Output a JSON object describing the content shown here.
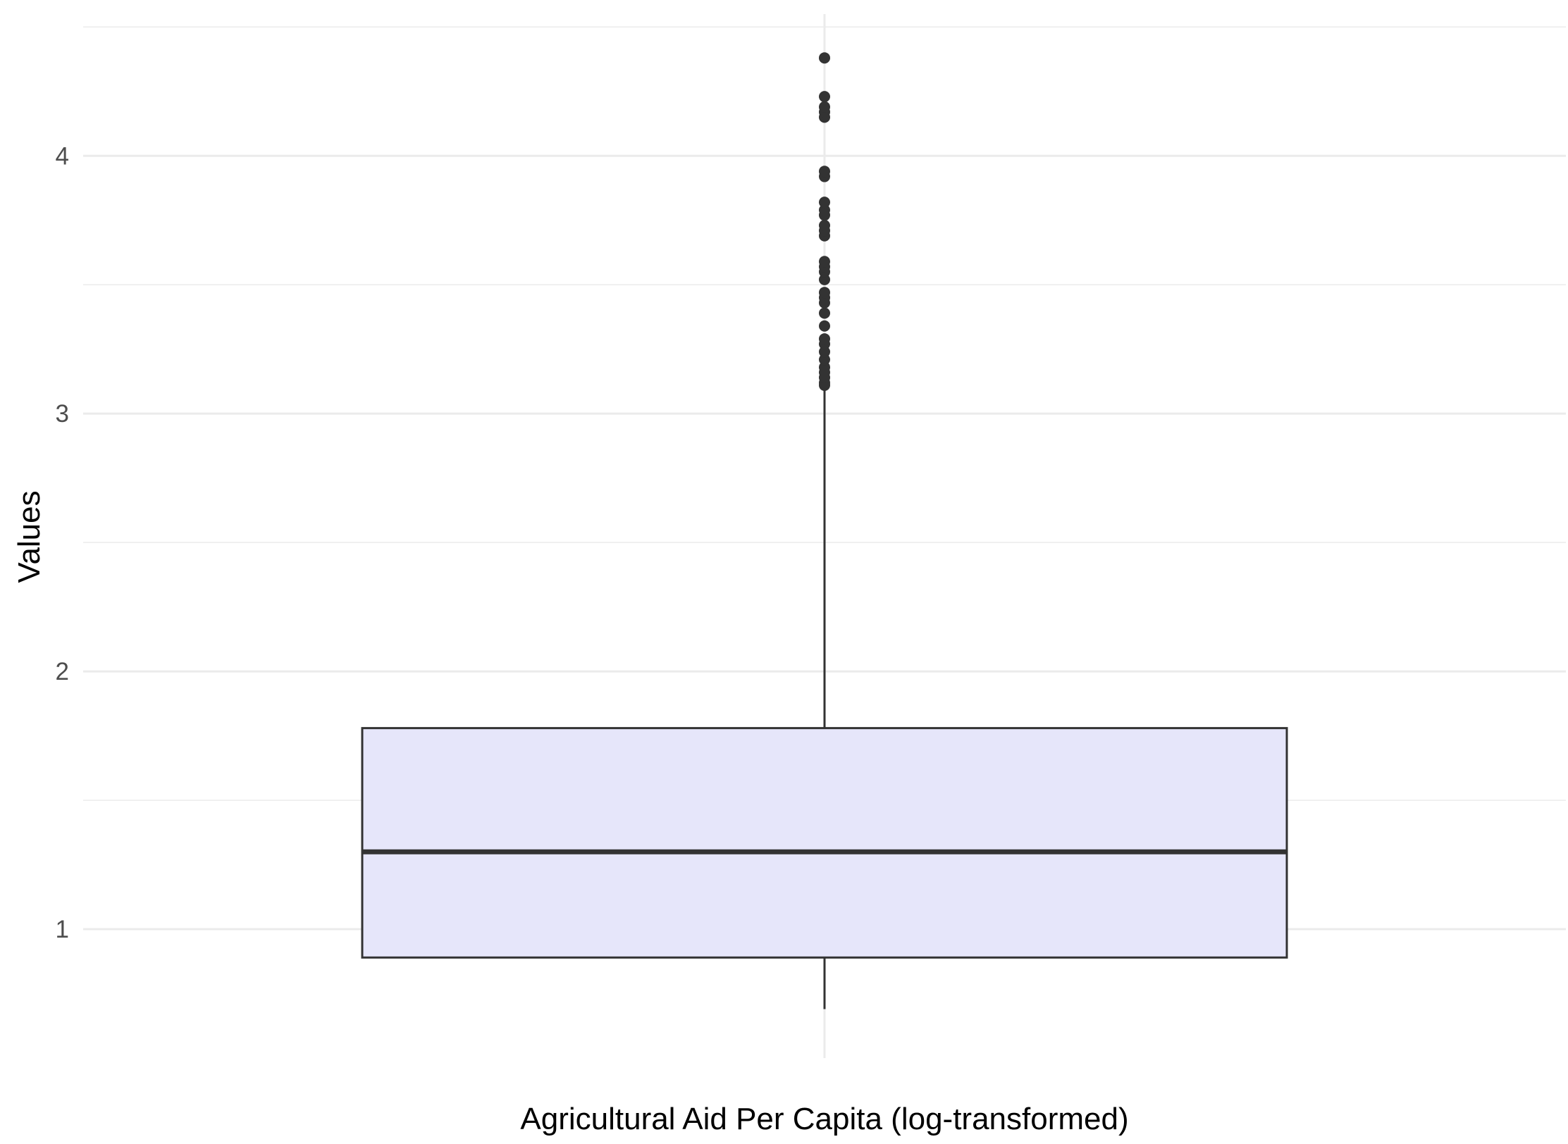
{
  "chart_data": {
    "type": "box",
    "title": "",
    "xlabel": "Agricultural Aid Per Capita (log-transformed)",
    "ylabel": "Values",
    "ylim": [
      0.5,
      4.55
    ],
    "y_ticks": [
      1,
      2,
      3,
      4
    ],
    "y_tick_labels": [
      "1",
      "2",
      "3",
      "4"
    ],
    "grid": true,
    "box_fill": "#E6E6FA",
    "stroke_color": "#333333",
    "grid_color": "#EBEBEB",
    "boxes": [
      {
        "category": "Agricultural Aid Per Capita (log-transformed)",
        "whisker_low": 0.69,
        "q1": 0.89,
        "median": 1.3,
        "q3": 1.78,
        "whisker_high": 3.1,
        "outliers": [
          3.11,
          3.12,
          3.14,
          3.16,
          3.18,
          3.21,
          3.24,
          3.27,
          3.29,
          3.34,
          3.39,
          3.43,
          3.45,
          3.47,
          3.52,
          3.55,
          3.57,
          3.59,
          3.69,
          3.71,
          3.73,
          3.77,
          3.79,
          3.82,
          3.92,
          3.94,
          4.15,
          4.17,
          4.19,
          4.23,
          4.38
        ]
      }
    ]
  }
}
